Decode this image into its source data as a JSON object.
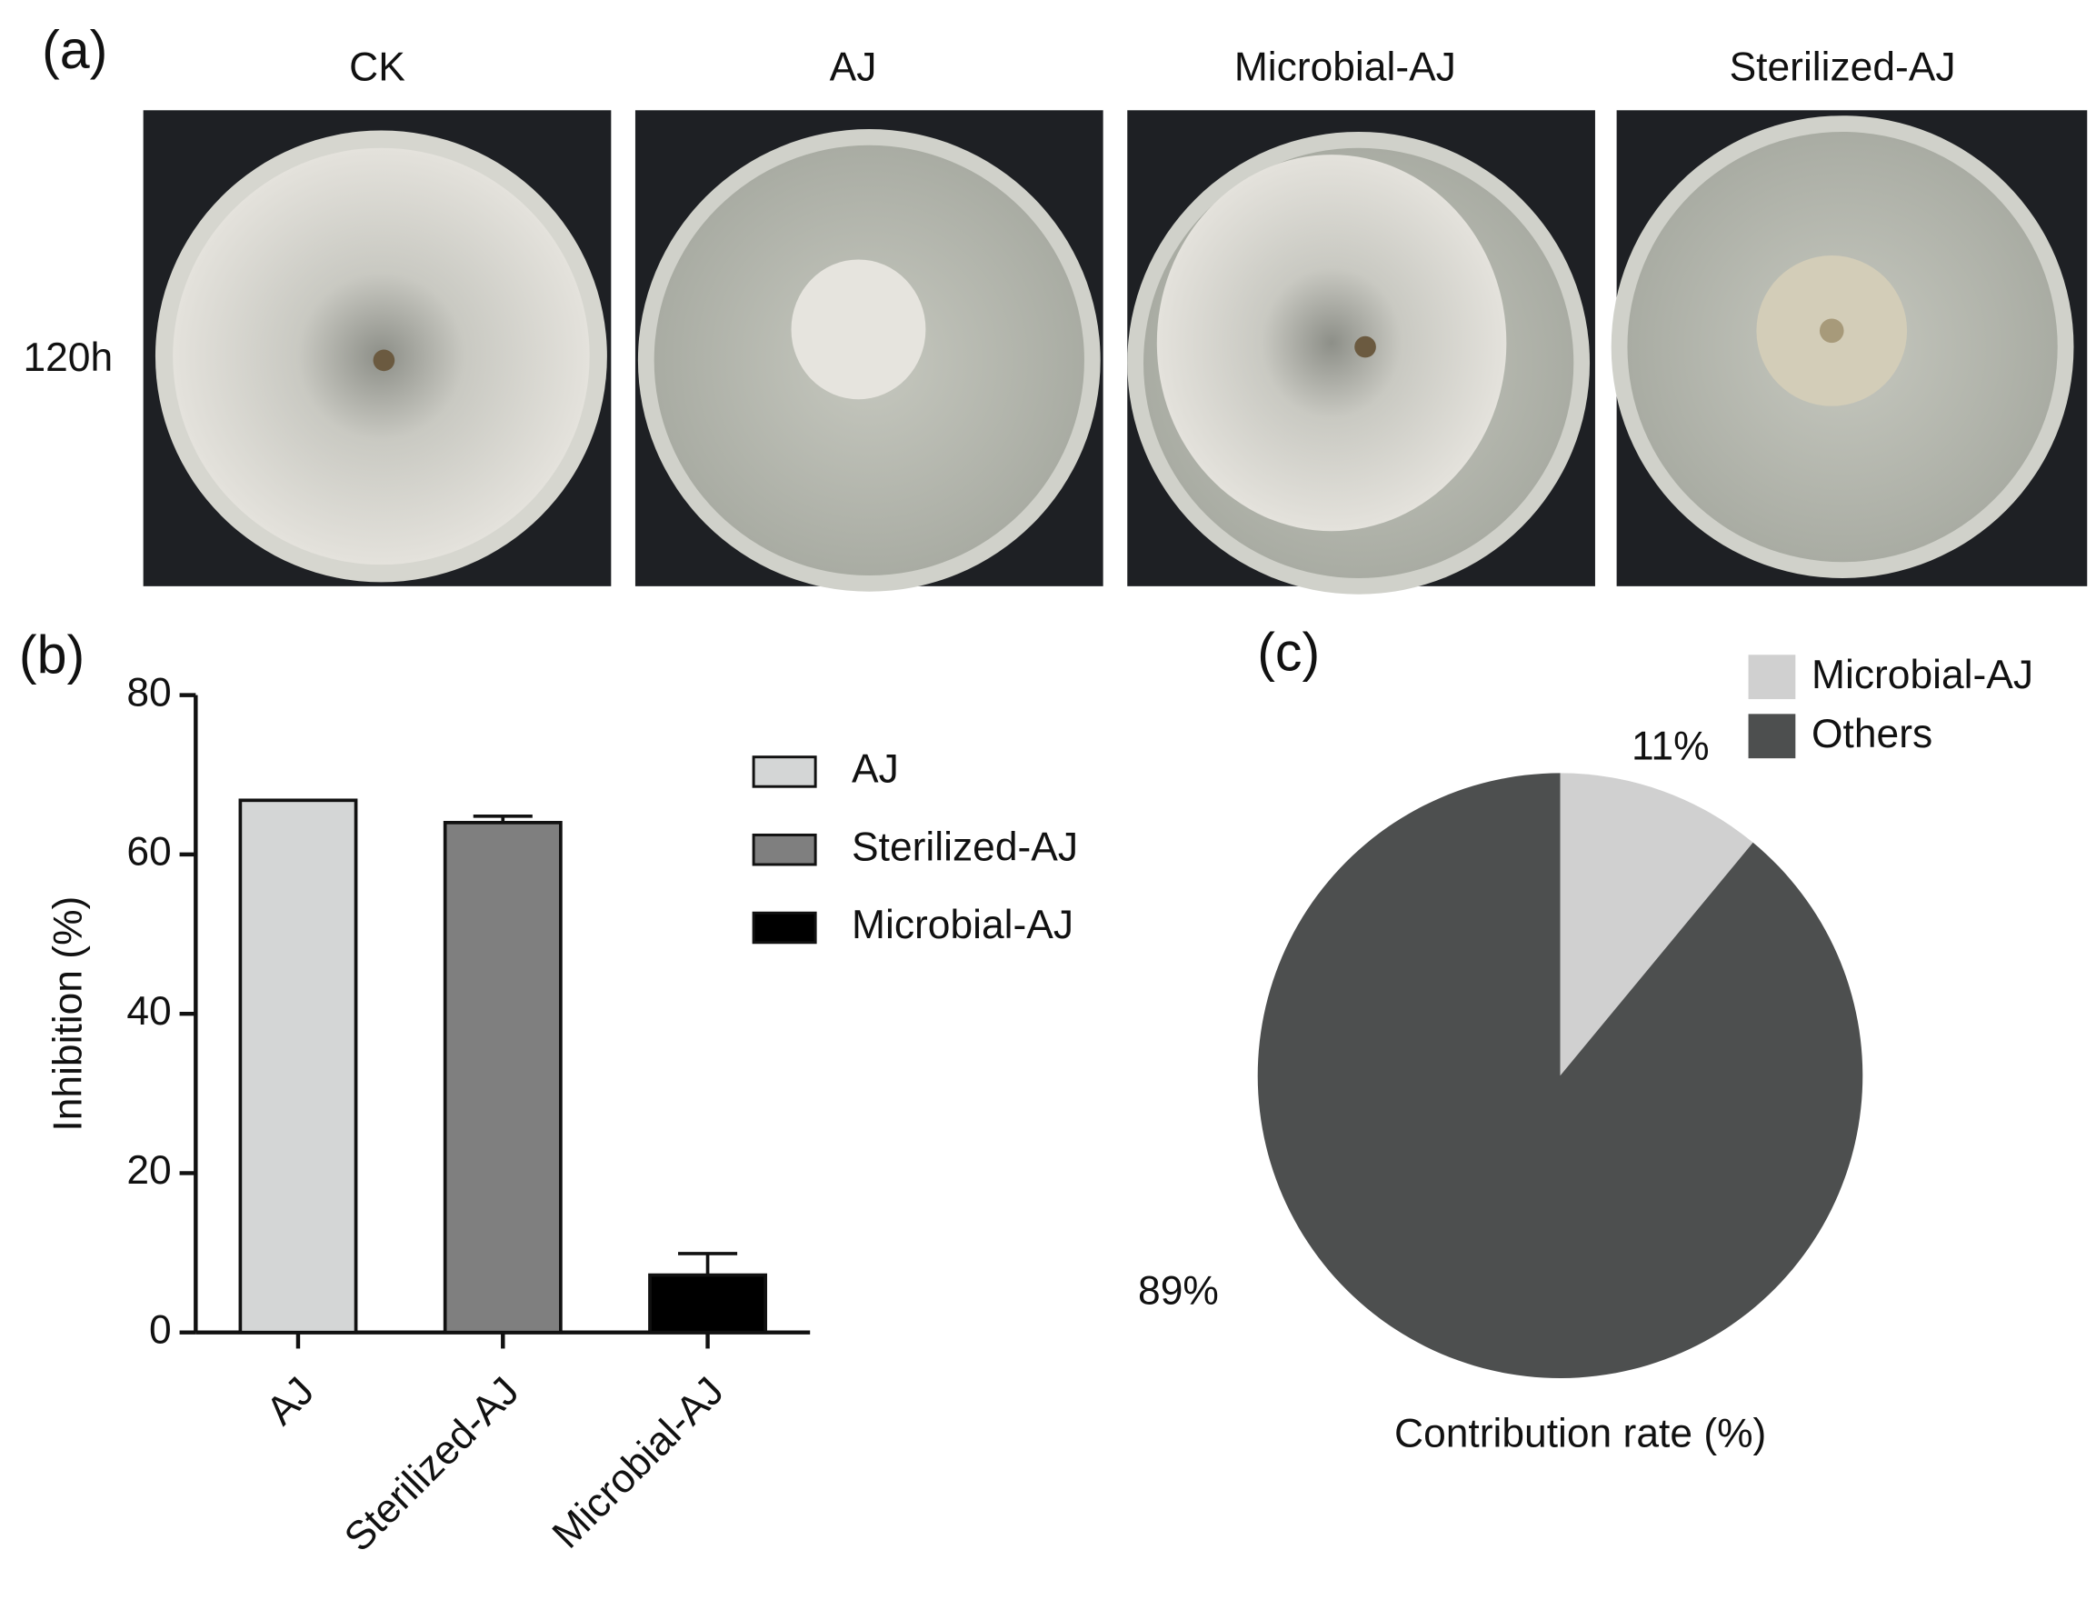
{
  "panels": {
    "a": "(a)",
    "b": "(b)",
    "c": "(c)"
  },
  "photos": {
    "row_label": "120h",
    "columns": [
      "CK",
      "AJ",
      "Microbial-AJ",
      "Sterilized-AJ"
    ]
  },
  "chart_data": [
    {
      "type": "bar",
      "ylabel": "Inhibition (%)",
      "categories": [
        "AJ",
        "Sterilized-AJ",
        "Microbial-AJ"
      ],
      "values": [
        66.8,
        64.0,
        7.2
      ],
      "errors": [
        0,
        0.8,
        2.7
      ],
      "colors": [
        "#d4d6d6",
        "#7f7f7f",
        "#000000"
      ],
      "ylim": [
        0,
        80
      ],
      "yticks": [
        0,
        20,
        40,
        60,
        80
      ]
    },
    {
      "type": "pie",
      "xlabel": "Contribution rate (%)",
      "categories": [
        "Microbial-AJ",
        "Others"
      ],
      "values": [
        11,
        89
      ],
      "value_labels": [
        "11%",
        "89%"
      ],
      "colors": [
        "#d0d0d0",
        "#4d4f4f"
      ]
    }
  ]
}
